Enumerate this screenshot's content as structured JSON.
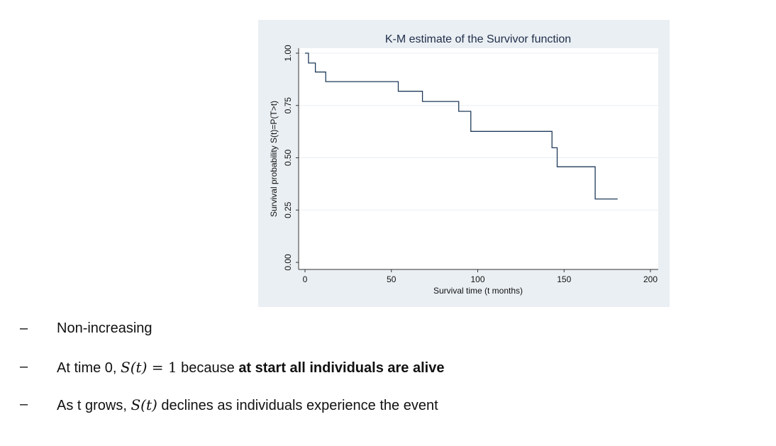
{
  "chart_data": {
    "type": "line",
    "step": true,
    "title": "K-M estimate of the Survivor function",
    "xlabel": "Survival time (t months)",
    "ylabel": "Survival probability S(t)=P(T>t)",
    "xlim": [
      0,
      200
    ],
    "ylim": [
      0,
      1
    ],
    "xticks": [
      "0",
      "50",
      "100",
      "150",
      "200"
    ],
    "yticks": [
      "0.00",
      "0.25",
      "0.50",
      "0.75",
      "1.00"
    ],
    "grid": true,
    "series": [
      {
        "x": [
          0,
          2,
          6,
          12,
          54,
          68,
          89,
          96,
          143,
          146,
          168,
          181
        ],
        "y": [
          1.0,
          0.953,
          0.91,
          0.864,
          0.818,
          0.769,
          0.722,
          0.626,
          0.548,
          0.457,
          0.303,
          0.303
        ]
      }
    ],
    "colors": {
      "panel": "#eaeff3",
      "plot": "#ffffff",
      "line": "#1f3a5a",
      "grid": "#eaeff3",
      "text": "#1f2d4a"
    }
  },
  "bullets": [
    {
      "dash": "–",
      "text": "Non-increasing"
    },
    {
      "dash": "–",
      "pre": "At time 0, ",
      "math": "S(t)",
      "eq": " = 1",
      "mid": " because ",
      "bold": "at start all individuals are alive"
    },
    {
      "dash": "–",
      "pre": "As t grows, ",
      "math": "S(t)",
      "post": " declines as individuals experience the event"
    }
  ]
}
